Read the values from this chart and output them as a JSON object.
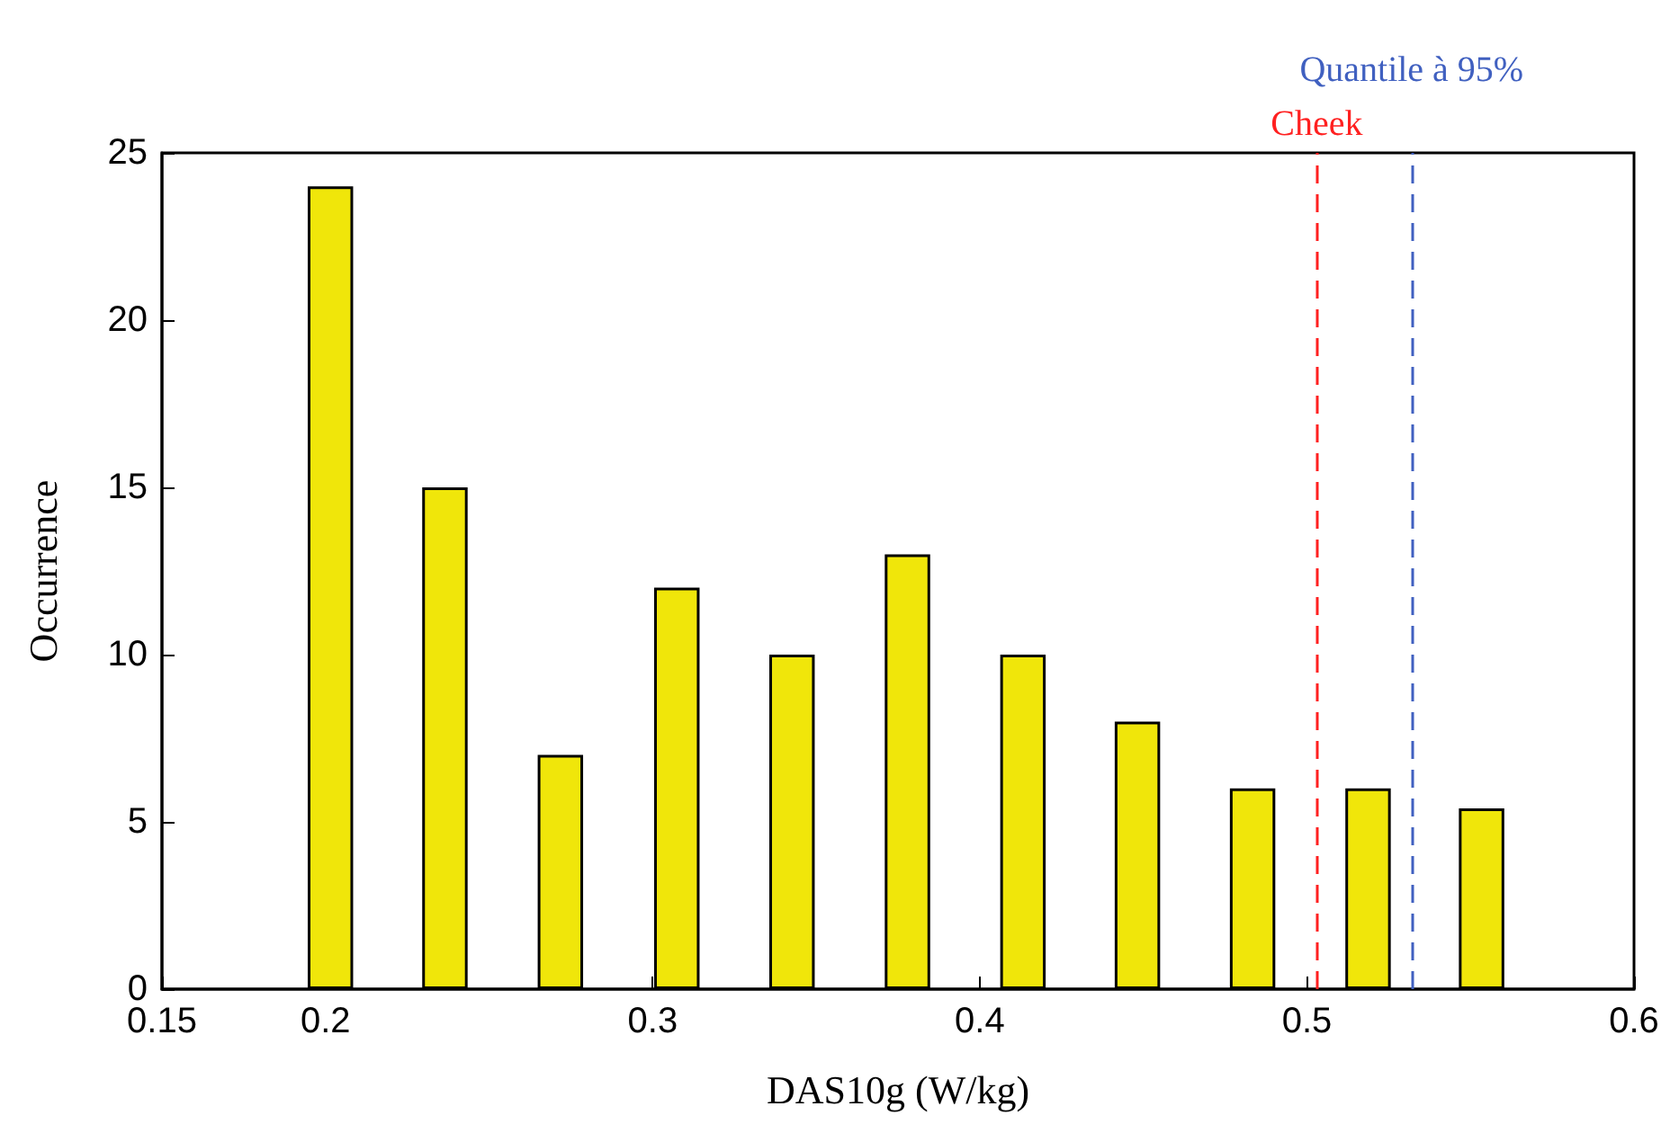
{
  "chart_data": {
    "type": "bar",
    "xlabel": "DAS10g (W/kg)",
    "ylabel": "Occurrence",
    "x": [
      0.2015,
      0.2365,
      0.2718,
      0.3074,
      0.3426,
      0.3779,
      0.4132,
      0.4482,
      0.4834,
      0.5187,
      0.5534
    ],
    "values": [
      24,
      15,
      7,
      12,
      10,
      13,
      10,
      8,
      6,
      6,
      5.4
    ],
    "color": "#f0e60a",
    "xlim": [
      0.15,
      0.6
    ],
    "xticks": [
      0.15,
      0.2,
      0.3,
      0.4,
      0.5,
      0.6
    ],
    "ylim": [
      0,
      25
    ],
    "yticks": [
      0,
      5,
      10,
      15,
      20,
      25
    ],
    "ref_lines": [
      {
        "axis": "x",
        "value": 0.503,
        "label": "Cheek",
        "color": "#ff2020",
        "line_style": "dashed"
      },
      {
        "axis": "x",
        "value": 0.532,
        "label": "Quantile à 95%",
        "color": "#4060c0",
        "line_style": "dashed"
      }
    ],
    "grid": false
  }
}
